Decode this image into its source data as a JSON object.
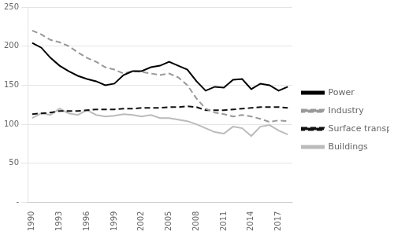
{
  "chart_data": {
    "type": "line",
    "x": [
      1990,
      1991,
      1992,
      1993,
      1994,
      1995,
      1996,
      1997,
      1998,
      1999,
      2000,
      2001,
      2002,
      2003,
      2004,
      2005,
      2006,
      2007,
      2008,
      2009,
      2010,
      2011,
      2012,
      2013,
      2014,
      2015,
      2016,
      2017,
      2018
    ],
    "series": [
      {
        "name": "Power",
        "color": "#000000",
        "line_style": "solid",
        "values": [
          204,
          198,
          185,
          175,
          168,
          162,
          158,
          155,
          150,
          152,
          163,
          168,
          168,
          173,
          175,
          180,
          175,
          170,
          155,
          143,
          148,
          147,
          157,
          158,
          145,
          152,
          150,
          143,
          148
        ]
      },
      {
        "name": "Industry",
        "color": "#999999",
        "line_style": "dashed",
        "values": [
          220,
          215,
          208,
          205,
          200,
          192,
          185,
          180,
          173,
          170,
          165,
          168,
          167,
          165,
          163,
          165,
          160,
          150,
          133,
          120,
          115,
          113,
          110,
          112,
          110,
          107,
          103,
          105,
          104
        ]
      },
      {
        "name": "Surface transport",
        "color": "#111111",
        "line_style": "dashed",
        "values": [
          113,
          114,
          115,
          117,
          117,
          117,
          118,
          119,
          119,
          119,
          120,
          120,
          121,
          121,
          121,
          122,
          122,
          123,
          122,
          118,
          118,
          118,
          119,
          120,
          121,
          122,
          122,
          122,
          121
        ]
      },
      {
        "name": "Buildings",
        "color": "#bbbbbb",
        "line_style": "solid",
        "values": [
          108,
          114,
          112,
          120,
          114,
          112,
          118,
          112,
          110,
          111,
          113,
          112,
          110,
          112,
          108,
          108,
          106,
          104,
          100,
          95,
          90,
          88,
          97,
          95,
          85,
          97,
          99,
          92,
          87
        ]
      }
    ],
    "xlim": [
      1989.5,
      2018.5
    ],
    "xticks": [
      1990,
      1993,
      1996,
      1999,
      2002,
      2005,
      2008,
      2011,
      2014,
      2017
    ],
    "ylim": [
      0,
      250
    ],
    "yticks": [
      {
        "value": 0,
        "label": "-"
      },
      50,
      100,
      150,
      200,
      250
    ],
    "grid": true,
    "legend": "right"
  }
}
